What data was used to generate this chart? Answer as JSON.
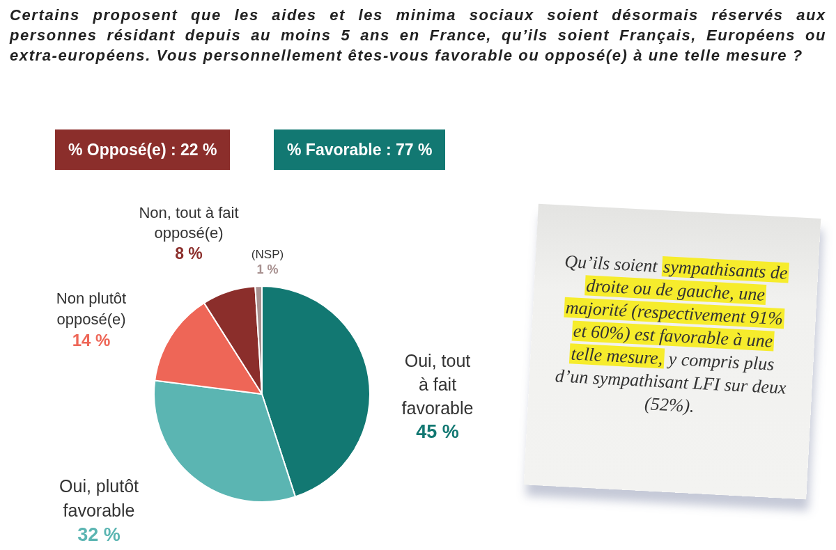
{
  "chart_data": {
    "type": "pie",
    "title": "Certains proposent que les aides et les minima sociaux soient désormais réservés aux personnes résidant depuis au moins 5 ans en France, qu’ils soient Français, Européens ou extra-européens. Vous personnellement êtes-vous favorable ou opposé(e) à une telle mesure ?",
    "categories": [
      "Oui, tout à fait favorable",
      "Oui, plutôt favorable",
      "Non plutôt opposé(e)",
      "Non, tout à fait opposé(e)",
      "(NSP)"
    ],
    "values": [
      45,
      32,
      14,
      8,
      1
    ],
    "colors": [
      "#127872",
      "#5bb5b2",
      "#ee6657",
      "#8b2e2b",
      "#a89190"
    ],
    "value_labels": [
      "45 %",
      "32 %",
      "14 %",
      "8 %",
      "1 %"
    ],
    "annotations": [
      "% Opposé(e) : 22 %",
      "% Favorable : 77 %",
      "Qu’ils soient",
      "sympathisants de droite ou de gauche, une majorité (respectivement 91% et 60%) est favorable à une telle mesure,",
      "y compris plus d’un sympathisant LFI sur deux (52%)."
    ]
  }
}
